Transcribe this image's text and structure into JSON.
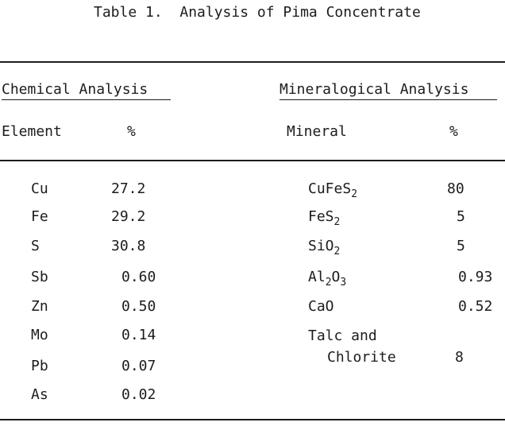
{
  "table": {
    "title": "Table 1.  Analysis of Pima Concentrate",
    "chemical": {
      "heading": "Chemical Analysis",
      "col_element": "Element",
      "col_percent": "%",
      "rows": [
        {
          "element": "Cu",
          "percent": "27.2"
        },
        {
          "element": "Fe",
          "percent": "29.2"
        },
        {
          "element": "S",
          "percent": "30.8"
        },
        {
          "element": "Sb",
          "percent": "0.60"
        },
        {
          "element": "Zn",
          "percent": "0.50"
        },
        {
          "element": "Mo",
          "percent": "0.14"
        },
        {
          "element": "Pb",
          "percent": "0.07"
        },
        {
          "element": "As",
          "percent": "0.02"
        }
      ]
    },
    "mineralogical": {
      "heading": "Mineralogical Analysis",
      "col_mineral": "Mineral",
      "col_percent": "%",
      "rows": [
        {
          "mineral": {
            "base": "CuFeS",
            "sub": "2"
          },
          "percent": "80"
        },
        {
          "mineral": {
            "base": "FeS",
            "sub": "2"
          },
          "percent": "5"
        },
        {
          "mineral": {
            "base": "SiO",
            "sub": "2"
          },
          "percent": "5"
        },
        {
          "mineral": {
            "a": "Al",
            "sub1": "2",
            "b": "O",
            "sub2": "3"
          },
          "percent": "0.93"
        },
        {
          "mineral": {
            "base": "CaO"
          },
          "percent": "0.52"
        },
        {
          "mineral": {
            "line1": "Talc and",
            "line2": "Chlorite"
          },
          "percent": "8"
        }
      ]
    }
  }
}
